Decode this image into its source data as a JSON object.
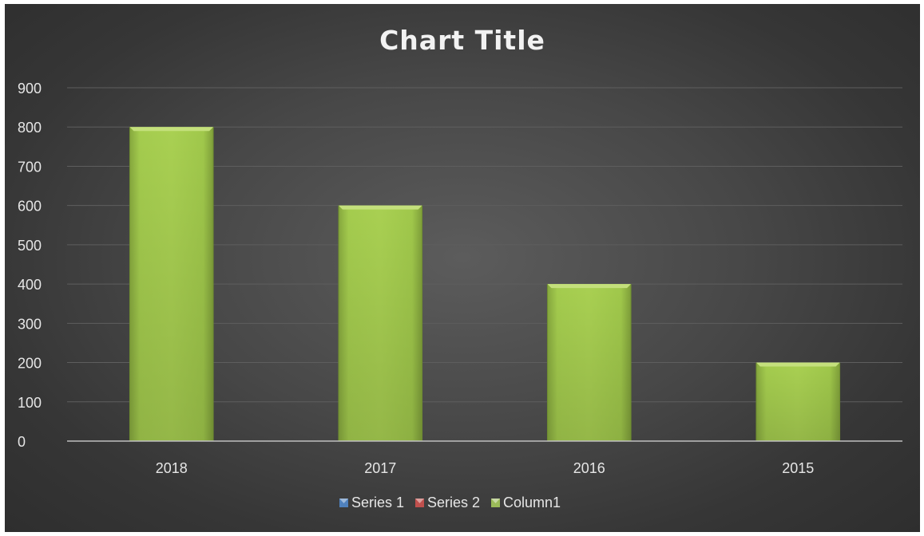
{
  "chart_data": {
    "type": "bar",
    "title": "Chart Title",
    "categories": [
      "2018",
      "2017",
      "2016",
      "2015"
    ],
    "series": [
      {
        "name": "Series 1",
        "values": [
          null,
          null,
          null,
          null
        ],
        "color": "#4f81bd"
      },
      {
        "name": "Series 2",
        "values": [
          null,
          null,
          null,
          null
        ],
        "color": "#c0504d"
      },
      {
        "name": "Column1",
        "values": [
          800,
          600,
          400,
          200
        ],
        "color": "#9bbb59"
      }
    ],
    "yticks": [
      "0",
      "100",
      "200",
      "300",
      "400",
      "500",
      "600",
      "700",
      "800",
      "900"
    ],
    "ylim": [
      0,
      900
    ],
    "xlabel": "",
    "ylabel": "",
    "grid": true,
    "legend": "bottom"
  }
}
